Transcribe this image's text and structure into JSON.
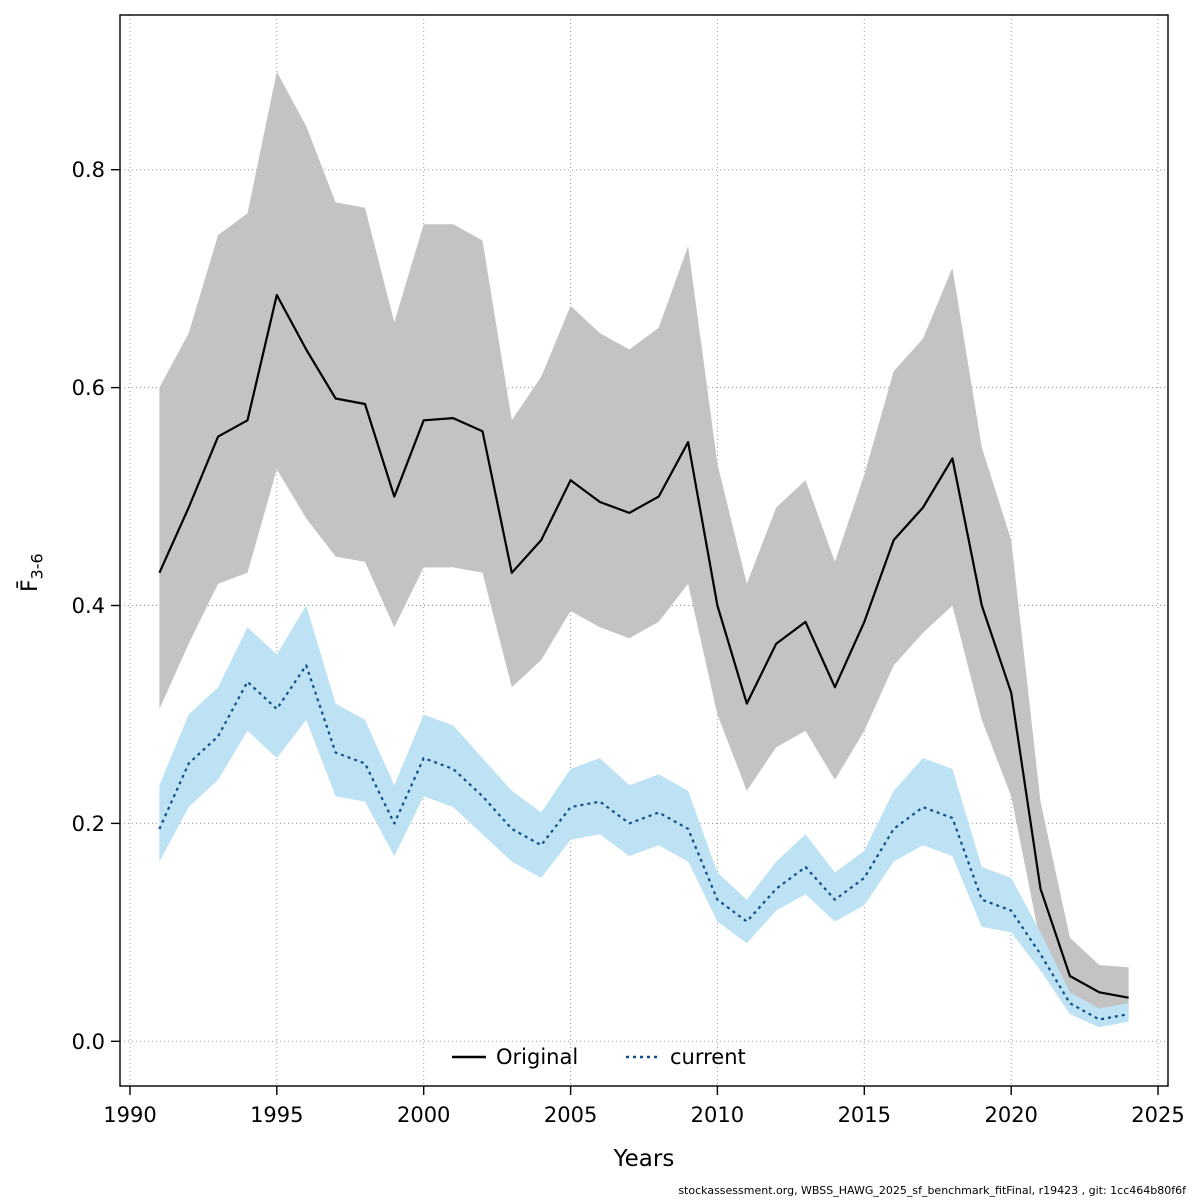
{
  "chart_data": {
    "type": "line",
    "title": "",
    "xlabel": "Years",
    "ylabel_main": "F̄",
    "ylabel_sub": "3-6",
    "grid": true,
    "legend_position": "bottom-center-inside",
    "xlim": [
      1989.66,
      2025.34
    ],
    "ylim": [
      -0.041,
      0.942
    ],
    "xticks": [
      1990,
      1995,
      2000,
      2005,
      2010,
      2015,
      2020,
      2025
    ],
    "yticks": [
      0.0,
      0.2,
      0.4,
      0.6,
      0.8
    ],
    "x": [
      1991,
      1992,
      1993,
      1994,
      1995,
      1996,
      1997,
      1998,
      1999,
      2000,
      2001,
      2002,
      2003,
      2004,
      2005,
      2006,
      2007,
      2008,
      2009,
      2010,
      2011,
      2012,
      2013,
      2014,
      2015,
      2016,
      2017,
      2018,
      2019,
      2020,
      2021,
      2022,
      2023,
      2024
    ],
    "series": [
      {
        "name": "Original",
        "color": "#000000",
        "style": "solid",
        "band_color": "#c3c3c3",
        "values": [
          0.43,
          0.49,
          0.555,
          0.57,
          0.685,
          0.635,
          0.59,
          0.585,
          0.5,
          0.57,
          0.572,
          0.56,
          0.43,
          0.46,
          0.515,
          0.495,
          0.485,
          0.5,
          0.55,
          0.4,
          0.31,
          0.365,
          0.385,
          0.325,
          0.385,
          0.46,
          0.49,
          0.535,
          0.4,
          0.32,
          0.14,
          0.06,
          0.045,
          0.04
        ],
        "upper": [
          0.6,
          0.65,
          0.74,
          0.76,
          0.89,
          0.84,
          0.77,
          0.765,
          0.66,
          0.75,
          0.75,
          0.735,
          0.57,
          0.61,
          0.675,
          0.65,
          0.635,
          0.655,
          0.73,
          0.53,
          0.42,
          0.49,
          0.515,
          0.44,
          0.52,
          0.615,
          0.645,
          0.71,
          0.545,
          0.46,
          0.22,
          0.095,
          0.07,
          0.068
        ],
        "lower": [
          0.305,
          0.365,
          0.42,
          0.43,
          0.525,
          0.48,
          0.445,
          0.44,
          0.38,
          0.435,
          0.435,
          0.43,
          0.325,
          0.35,
          0.395,
          0.38,
          0.37,
          0.385,
          0.42,
          0.3,
          0.23,
          0.27,
          0.285,
          0.24,
          0.285,
          0.345,
          0.375,
          0.4,
          0.295,
          0.225,
          0.09,
          0.04,
          0.03,
          0.025
        ]
      },
      {
        "name": "current",
        "color": "#104e8b",
        "style": "dotted",
        "band_color": "#bce2f3",
        "values": [
          0.195,
          0.255,
          0.28,
          0.33,
          0.305,
          0.345,
          0.265,
          0.255,
          0.2,
          0.26,
          0.25,
          0.225,
          0.195,
          0.18,
          0.215,
          0.22,
          0.2,
          0.21,
          0.195,
          0.13,
          0.11,
          0.14,
          0.16,
          0.13,
          0.15,
          0.195,
          0.215,
          0.205,
          0.13,
          0.12,
          0.08,
          0.035,
          0.02,
          0.025
        ],
        "upper": [
          0.235,
          0.3,
          0.325,
          0.38,
          0.355,
          0.4,
          0.31,
          0.295,
          0.235,
          0.3,
          0.29,
          0.26,
          0.23,
          0.21,
          0.25,
          0.26,
          0.235,
          0.245,
          0.23,
          0.155,
          0.13,
          0.165,
          0.19,
          0.155,
          0.175,
          0.23,
          0.26,
          0.25,
          0.16,
          0.15,
          0.1,
          0.045,
          0.03,
          0.035
        ],
        "lower": [
          0.165,
          0.215,
          0.24,
          0.285,
          0.26,
          0.295,
          0.225,
          0.22,
          0.17,
          0.225,
          0.215,
          0.19,
          0.165,
          0.15,
          0.185,
          0.19,
          0.17,
          0.18,
          0.165,
          0.11,
          0.09,
          0.12,
          0.135,
          0.11,
          0.125,
          0.165,
          0.18,
          0.17,
          0.105,
          0.1,
          0.065,
          0.025,
          0.013,
          0.018
        ]
      }
    ]
  },
  "footer": {
    "text": "stockassessment.org, WBSS_HAWG_2025_sf_benchmark_fitFinal, r19423 , git: 1cc464b80f6f"
  }
}
